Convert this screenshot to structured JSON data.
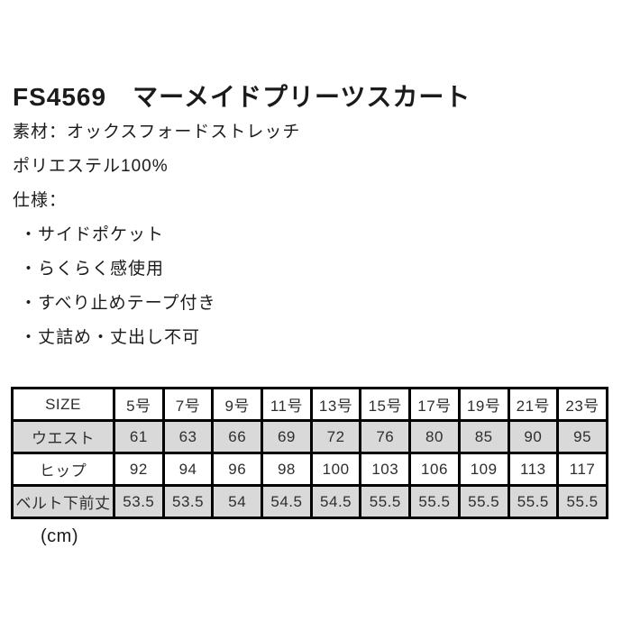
{
  "product": {
    "title": "FS4569　マーメイドプリーツスカート",
    "material_line": "素材：オックスフォードストレッチ",
    "composition_line": "ポリエステル100%",
    "spec_heading": "仕様：",
    "features": [
      "・サイドポケット",
      "・らくらく感使用",
      "・すべり止めテープ付き",
      "・丈詰め・丈出し不可"
    ]
  },
  "size_table": {
    "unit_note": "(cm)",
    "header": [
      "SIZE",
      "5号",
      "7号",
      "9号",
      "11号",
      "13号",
      "15号",
      "17号",
      "19号",
      "21号",
      "23号"
    ],
    "rows": [
      {
        "label": "ウエスト",
        "shaded": true,
        "values": [
          "61",
          "63",
          "66",
          "69",
          "72",
          "76",
          "80",
          "85",
          "90",
          "95"
        ]
      },
      {
        "label": "ヒップ",
        "shaded": false,
        "values": [
          "92",
          "94",
          "96",
          "98",
          "100",
          "103",
          "106",
          "109",
          "113",
          "117"
        ]
      },
      {
        "label": "ベルト下前丈",
        "shaded": true,
        "values": [
          "53.5",
          "53.5",
          "54",
          "54.5",
          "54.5",
          "55.5",
          "55.5",
          "55.5",
          "55.5",
          "55.5"
        ]
      }
    ]
  },
  "colors": {
    "table_border": "#000000",
    "shaded_row_bg": "#d9d9d9",
    "text": "#1b1b1b"
  }
}
